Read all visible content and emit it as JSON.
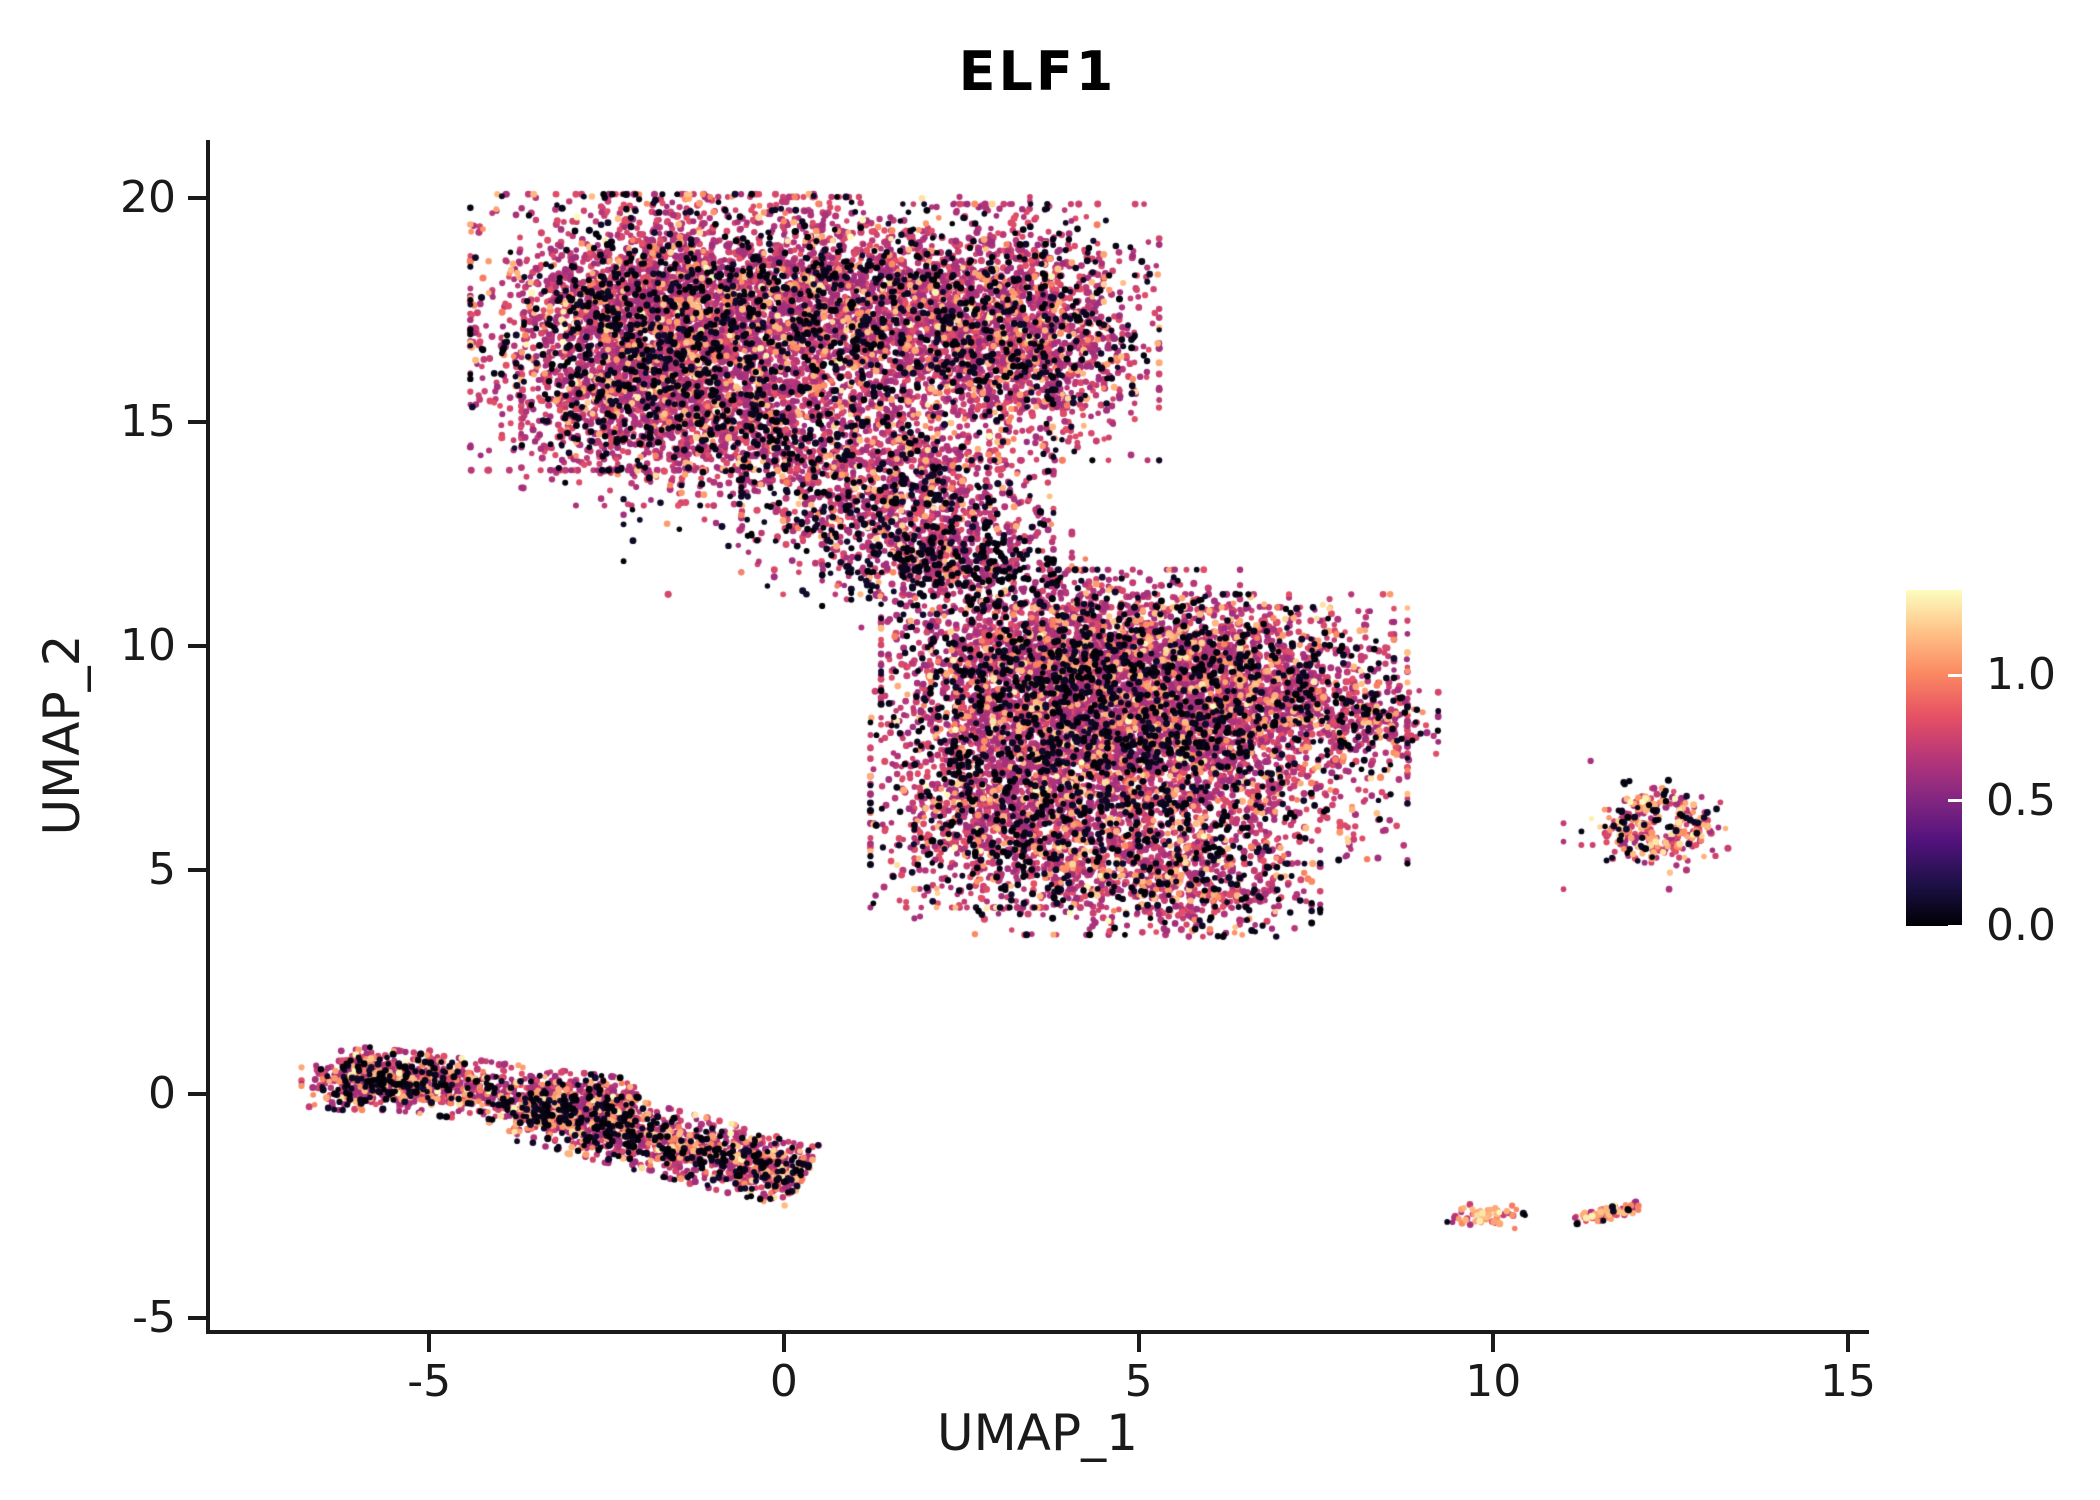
{
  "chart_data": {
    "type": "scatter",
    "title": "ELF1",
    "xlabel": "UMAP_1",
    "ylabel": "UMAP_2",
    "xlim": [
      -8.09,
      15.24
    ],
    "ylim": [
      -5.27,
      21.29
    ],
    "xticks": [
      -5,
      0,
      5,
      10,
      15
    ],
    "xtick_labels": [
      "-5",
      "0",
      "5",
      "10",
      "15"
    ],
    "yticks": [
      -5,
      0,
      5,
      10,
      15,
      20
    ],
    "ytick_labels": [
      "-5",
      "0",
      "5",
      "10",
      "15",
      "20"
    ],
    "grid": false,
    "legend_position": "right-colorbar",
    "seed": 42,
    "point_radius_px": [
      2.7,
      3.6
    ],
    "colormap": {
      "name": "magma",
      "stops": [
        {
          "t": 0.0,
          "c": "#000004"
        },
        {
          "t": 0.125,
          "c": "#1d1147"
        },
        {
          "t": 0.25,
          "c": "#51127c"
        },
        {
          "t": 0.375,
          "c": "#822681"
        },
        {
          "t": 0.5,
          "c": "#b63679"
        },
        {
          "t": 0.625,
          "c": "#e65164"
        },
        {
          "t": 0.75,
          "c": "#fb8861"
        },
        {
          "t": 0.875,
          "c": "#fec287"
        },
        {
          "t": 1.0,
          "c": "#fcfdbf"
        }
      ]
    },
    "colorbar": {
      "min": 0,
      "max": 1.34,
      "tick_values": [
        0.0,
        0.5,
        1.0
      ],
      "ticks": [
        "0.0",
        "0.5",
        "1.0"
      ]
    },
    "value_classes": {
      "black": [
        0.0,
        0.08
      ],
      "mid": [
        0.44,
        0.62
      ],
      "orange": [
        0.72,
        0.88
      ],
      "cream": [
        0.9,
        1.0
      ]
    },
    "clusters": [
      {
        "name": "top-blob-left-core",
        "shape": "gauss",
        "cx": -2.0,
        "cy": 17.0,
        "sx": 1.1,
        "sy": 1.4,
        "n": 3200,
        "colors": {
          "black": 0.17,
          "mid": 0.735,
          "orange": 0.085,
          "cream": 0.01
        }
      },
      {
        "name": "top-blob-center",
        "shape": "gauss",
        "cx": 0.6,
        "cy": 17.6,
        "sx": 1.4,
        "sy": 1.1,
        "n": 2600,
        "colors": {
          "black": 0.17,
          "mid": 0.735,
          "orange": 0.085,
          "cream": 0.01
        }
      },
      {
        "name": "top-blob-right-lobe",
        "shape": "gauss",
        "cx": 3.2,
        "cy": 17.0,
        "sx": 0.95,
        "sy": 1.3,
        "n": 2000,
        "colors": {
          "black": 0.17,
          "mid": 0.735,
          "orange": 0.085,
          "cream": 0.01
        }
      },
      {
        "name": "top-blob-lower-band",
        "shape": "gauss",
        "cx": -0.4,
        "cy": 15.0,
        "sx": 1.5,
        "sy": 0.85,
        "n": 1400,
        "colors": {
          "black": 0.18,
          "mid": 0.73,
          "orange": 0.08,
          "cream": 0.01
        }
      },
      {
        "name": "top-blob-tail",
        "shape": "gauss",
        "cx": 1.6,
        "cy": 13.4,
        "sx": 1.0,
        "sy": 0.8,
        "n": 900,
        "colors": {
          "black": 0.22,
          "mid": 0.7,
          "orange": 0.07,
          "cream": 0.01
        }
      },
      {
        "name": "connector-upper",
        "shape": "gauss",
        "cx": 2.3,
        "cy": 12.1,
        "sx": 0.8,
        "sy": 0.55,
        "n": 450,
        "colors": {
          "black": 0.3,
          "mid": 0.63,
          "orange": 0.06,
          "cream": 0.01
        }
      },
      {
        "name": "connector-sparse",
        "shape": "gauss",
        "cx": 2.6,
        "cy": 11.4,
        "sx": 0.75,
        "sy": 0.45,
        "n": 200,
        "colors": {
          "black": 0.45,
          "mid": 0.5,
          "orange": 0.05,
          "cream": 0.0
        }
      },
      {
        "name": "bridge-scatter",
        "shape": "gauss",
        "cx": 0.6,
        "cy": 12.8,
        "sx": 1.3,
        "sy": 0.75,
        "n": 150,
        "colors": {
          "black": 0.45,
          "mid": 0.5,
          "orange": 0.05,
          "cream": 0.0
        }
      },
      {
        "name": "mid-blob-upper",
        "shape": "gauss",
        "cx": 3.9,
        "cy": 9.5,
        "sx": 1.15,
        "sy": 1.0,
        "n": 2600,
        "colors": {
          "black": 0.18,
          "mid": 0.71,
          "orange": 0.1,
          "cream": 0.01
        }
      },
      {
        "name": "mid-blob-core",
        "shape": "gauss",
        "cx": 5.6,
        "cy": 8.0,
        "sx": 1.45,
        "sy": 1.3,
        "n": 3000,
        "colors": {
          "black": 0.18,
          "mid": 0.7,
          "orange": 0.11,
          "cream": 0.01
        }
      },
      {
        "name": "mid-blob-left",
        "shape": "gauss",
        "cx": 3.2,
        "cy": 6.8,
        "sx": 0.9,
        "sy": 1.2,
        "n": 1600,
        "colors": {
          "black": 0.2,
          "mid": 0.7,
          "orange": 0.09,
          "cream": 0.01
        }
      },
      {
        "name": "mid-blob-upper-right",
        "shape": "gauss",
        "cx": 6.4,
        "cy": 9.5,
        "sx": 1.0,
        "sy": 0.75,
        "n": 800,
        "colors": {
          "black": 0.18,
          "mid": 0.72,
          "orange": 0.09,
          "cream": 0.01
        }
      },
      {
        "name": "mid-blob-bottom",
        "shape": "gauss",
        "cx": 4.7,
        "cy": 5.2,
        "sx": 1.3,
        "sy": 0.75,
        "n": 900,
        "colors": {
          "black": 0.22,
          "mid": 0.66,
          "orange": 0.11,
          "cream": 0.01
        }
      },
      {
        "name": "mid-blob-right-tip",
        "shape": "gauss",
        "cx": 8.3,
        "cy": 8.3,
        "sx": 0.42,
        "sy": 0.4,
        "n": 200,
        "colors": {
          "black": 0.2,
          "mid": 0.68,
          "orange": 0.11,
          "cream": 0.01
        }
      },
      {
        "name": "mid-blob-bottom-tail",
        "shape": "gauss",
        "cx": 5.9,
        "cy": 4.5,
        "sx": 0.7,
        "sy": 0.45,
        "n": 250,
        "colors": {
          "black": 0.25,
          "mid": 0.62,
          "orange": 0.12,
          "cream": 0.01
        }
      },
      {
        "name": "stray-below-mid",
        "shape": "gauss",
        "cx": 6.6,
        "cy": 3.75,
        "sx": 0.08,
        "sy": 0.06,
        "n": 3,
        "colors": {
          "black": 0.3,
          "mid": 0.7,
          "orange": 0.0,
          "cream": 0.0
        }
      },
      {
        "name": "right-ring",
        "shape": "ring",
        "cx": 12.35,
        "cy": 5.95,
        "r": 0.55,
        "sr": 0.17,
        "n": 260,
        "colors": {
          "black": 0.15,
          "mid": 0.52,
          "orange": 0.27,
          "cream": 0.06
        }
      },
      {
        "name": "right-ring-halo",
        "shape": "gauss",
        "cx": 12.2,
        "cy": 6.0,
        "sx": 0.55,
        "sy": 0.65,
        "n": 80,
        "colors": {
          "black": 0.25,
          "mid": 0.5,
          "orange": 0.2,
          "cream": 0.05
        }
      },
      {
        "name": "left-strand-a",
        "shape": "strand",
        "x1": -6.25,
        "y1": 0.45,
        "x2": -2.1,
        "y2": -0.35,
        "w": 0.3,
        "n": 1000,
        "colors": {
          "black": 0.22,
          "mid": 0.61,
          "orange": 0.15,
          "cream": 0.02
        }
      },
      {
        "name": "left-strand-b",
        "shape": "strand",
        "x1": -3.7,
        "y1": -0.3,
        "x2": 0.3,
        "y2": -1.85,
        "w": 0.33,
        "n": 1400,
        "colors": {
          "black": 0.22,
          "mid": 0.61,
          "orange": 0.15,
          "cream": 0.02
        }
      },
      {
        "name": "left-strand-head",
        "shape": "gauss",
        "cx": -5.7,
        "cy": 0.3,
        "sx": 0.5,
        "sy": 0.3,
        "n": 350,
        "colors": {
          "black": 0.2,
          "mid": 0.62,
          "orange": 0.16,
          "cream": 0.02
        }
      },
      {
        "name": "tiny-island-left",
        "shape": "gauss",
        "cx": 9.9,
        "cy": -2.72,
        "sx": 0.25,
        "sy": 0.13,
        "n": 55,
        "colors": {
          "black": 0.06,
          "mid": 0.24,
          "orange": 0.6,
          "cream": 0.1
        }
      },
      {
        "name": "tiny-island-right",
        "shape": "strand",
        "x1": 11.15,
        "y1": -2.82,
        "x2": 12.05,
        "y2": -2.5,
        "w": 0.07,
        "n": 80,
        "colors": {
          "black": 0.12,
          "mid": 0.33,
          "orange": 0.45,
          "cream": 0.1
        }
      },
      {
        "name": "tiny-island-dot",
        "shape": "gauss",
        "cx": 10.45,
        "cy": -2.68,
        "sx": 0.03,
        "sy": 0.03,
        "n": 2,
        "colors": {
          "black": 1.0,
          "mid": 0.0,
          "orange": 0.0,
          "cream": 0.0
        }
      }
    ]
  }
}
